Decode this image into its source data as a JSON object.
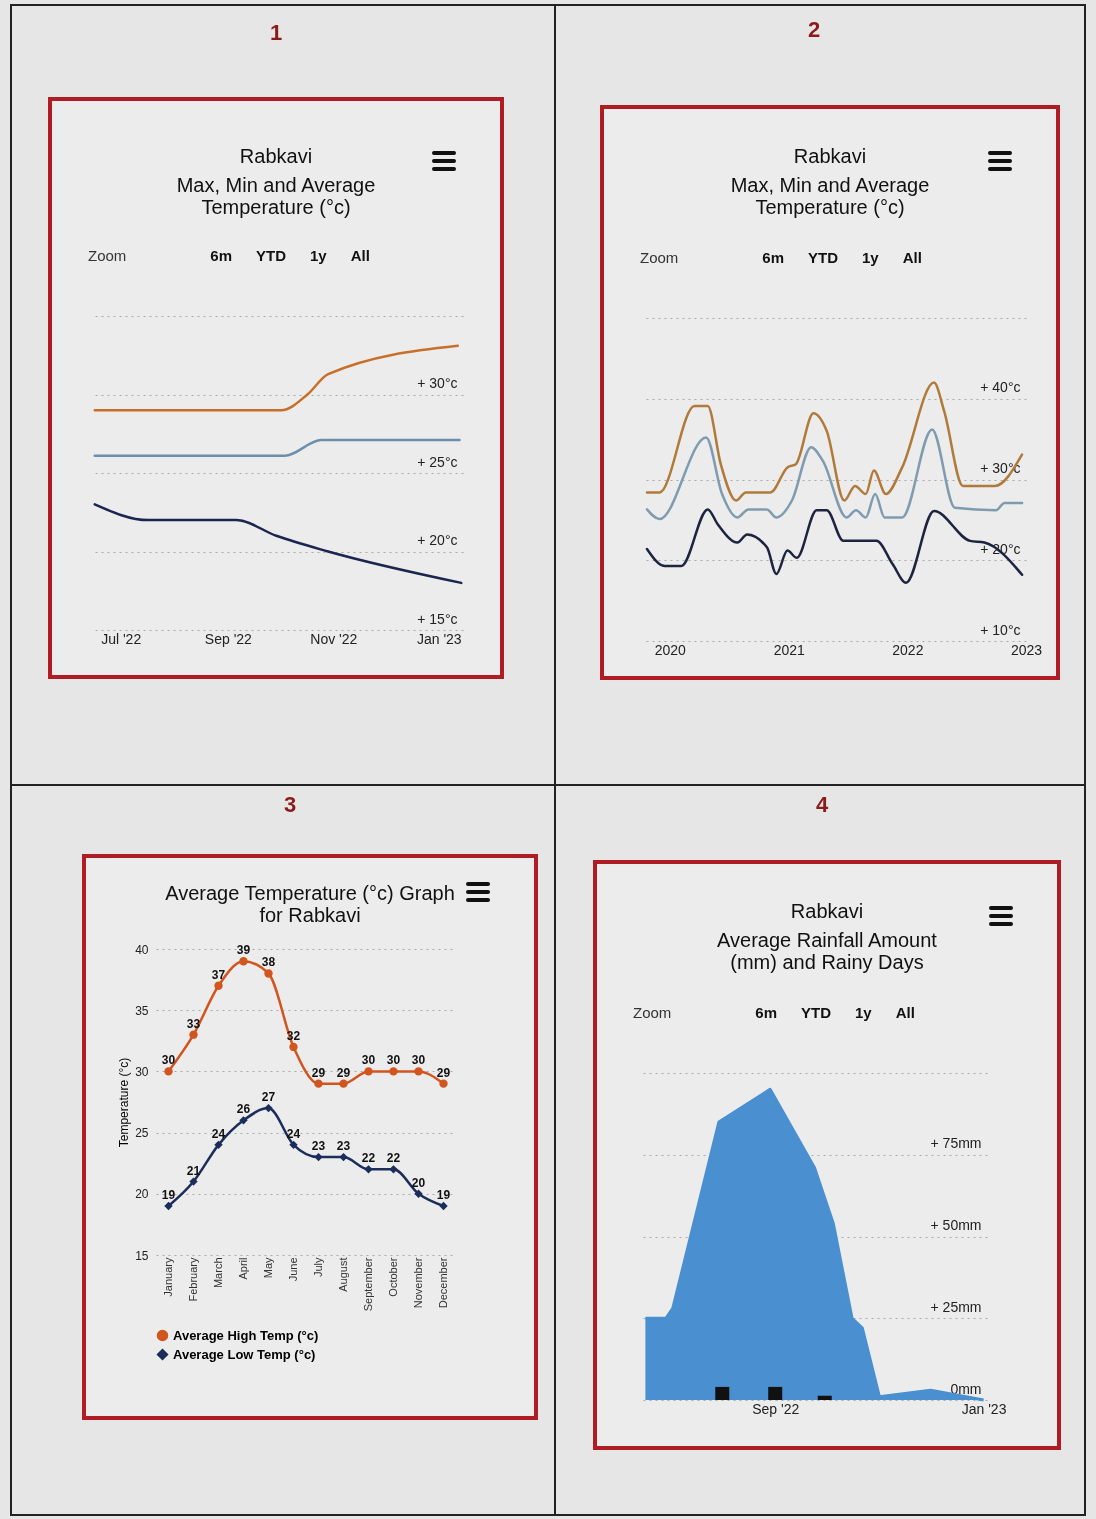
{
  "chart_data": [
    {
      "type": "line",
      "title": "Rabkavi",
      "subtitle": "Max, Min and Average Temperature (°c)",
      "annotations": [
        "1",
        "Zoom",
        "6m",
        "YTD",
        "1y",
        "All"
      ],
      "xlim": [
        "2022-06-15",
        "2023-01-15"
      ],
      "xticks": [
        {
          "value": "2022-07-01",
          "label": "Jul '22"
        },
        {
          "value": "2022-09-01",
          "label": "Sep '22"
        },
        {
          "value": "2022-11-01",
          "label": "Nov '22"
        },
        {
          "value": "2023-01-01",
          "label": "Jan '23"
        }
      ],
      "ylim": [
        15,
        35
      ],
      "yticks": [
        {
          "value": 15,
          "label": "+ 15°c"
        },
        {
          "value": 20,
          "label": "+ 20°c"
        },
        {
          "value": 25,
          "label": "+ 25°c"
        },
        {
          "value": 30,
          "label": "+ 30°c"
        },
        {
          "value": 35,
          "label": null
        }
      ],
      "grid": "y",
      "series": [
        {
          "color": "#c8702a",
          "x": [
            "2022-06-16",
            "2022-10-02",
            "2022-10-17",
            "2022-10-29",
            "2023-01-12"
          ],
          "values": [
            29.0,
            29.0,
            30.0,
            31.3,
            33.1
          ]
        },
        {
          "color": "#6d8fae",
          "x": [
            "2022-06-16",
            "2022-10-04",
            "2022-10-25",
            "2023-01-13"
          ],
          "values": [
            26.1,
            26.1,
            27.1,
            27.1
          ]
        },
        {
          "color": "#1a2550",
          "x": [
            "2022-06-16",
            "2022-07-17",
            "2022-09-06",
            "2022-09-29",
            "2022-10-29",
            "2023-01-14"
          ],
          "values": [
            23.0,
            22.0,
            22.0,
            21.0,
            20.0,
            18.0
          ]
        }
      ]
    },
    {
      "type": "line",
      "title": "Rabkavi",
      "subtitle": "Max, Min and Average Temperature (°c)",
      "annotations": [
        "2",
        "Zoom",
        "6m",
        "YTD",
        "1y",
        "All"
      ],
      "xlim": [
        "2019-10-20",
        "2023-01-01"
      ],
      "xticks": [
        {
          "value": "2020-01-01",
          "label": "2020"
        },
        {
          "value": "2021-01-01",
          "label": "2021"
        },
        {
          "value": "2022-01-01",
          "label": "2022"
        },
        {
          "value": "2023-01-01",
          "label": "2023"
        }
      ],
      "ylim": [
        10,
        50
      ],
      "yticks": [
        {
          "value": 10,
          "label": "+ 10°c"
        },
        {
          "value": 20,
          "label": "+ 20°c"
        },
        {
          "value": 30,
          "label": "+ 30°c"
        },
        {
          "value": 40,
          "label": "+ 40°c"
        },
        {
          "value": 50,
          "label": null
        }
      ],
      "grid": "y",
      "series": [
        {
          "color": "#b07a3a",
          "x": [
            "2019-10-23",
            "2019-12-01",
            "2020-03-17",
            "2020-04-27",
            "2020-06-06",
            "2020-07-23",
            "2020-08-22",
            "2020-11-06",
            "2020-12-28",
            "2021-01-23",
            "2021-03-18",
            "2021-04-28",
            "2021-06-21",
            "2021-07-24",
            "2021-08-26",
            "2021-09-20",
            "2021-10-27",
            "2021-12-16",
            "2022-03-24",
            "2022-04-24",
            "2022-06-21",
            "2022-09-27",
            "2022-12-20"
          ],
          "values": [
            28.4,
            28.4,
            39.1,
            39.1,
            31.9,
            27.4,
            28.4,
            28.4,
            31.5,
            31.9,
            38.2,
            36.0,
            27.4,
            29.2,
            28.2,
            31.1,
            28.2,
            31.5,
            42.0,
            38.5,
            29.2,
            29.2,
            33.1
          ]
        },
        {
          "color": "#7f9bb0",
          "x": [
            "2019-10-23",
            "2019-12-01",
            "2020-04-22",
            "2020-06-10",
            "2020-07-27",
            "2020-08-30",
            "2020-10-26",
            "2020-11-24",
            "2021-01-11",
            "2021-03-11",
            "2021-04-16",
            "2021-06-28",
            "2021-07-27",
            "2021-08-26",
            "2021-09-24",
            "2021-10-23",
            "2021-12-16",
            "2022-03-18",
            "2022-05-27",
            "2022-10-01",
            "2022-10-27",
            "2022-12-20"
          ],
          "values": [
            26.3,
            25.1,
            35.2,
            28.2,
            25.3,
            26.3,
            26.3,
            25.3,
            27.4,
            34.0,
            32.3,
            25.3,
            26.2,
            25.3,
            28.2,
            25.3,
            25.3,
            36.2,
            26.5,
            26.2,
            27.1,
            27.1
          ]
        },
        {
          "color": "#1c2440",
          "x": [
            "2019-10-23",
            "2019-12-16",
            "2020-02-06",
            "2020-04-27",
            "2020-05-27",
            "2020-07-27",
            "2020-08-26",
            "2020-10-26",
            "2020-11-24",
            "2020-12-28",
            "2021-01-26",
            "2021-03-28",
            "2021-04-28",
            "2021-06-18",
            "2021-09-28",
            "2021-11-17",
            "2021-12-28",
            "2022-03-24",
            "2022-07-13",
            "2022-08-26",
            "2022-12-20"
          ],
          "values": [
            21.4,
            19.3,
            19.3,
            26.3,
            24.5,
            22.2,
            23.2,
            21.6,
            18.3,
            21.2,
            20.3,
            26.2,
            26.2,
            22.4,
            22.4,
            19.5,
            17.2,
            26.1,
            22.4,
            22.2,
            18.2
          ]
        }
      ]
    },
    {
      "type": "line",
      "title": "Average Temperature (°c) Graph for Rabkavi",
      "annotations": [
        "3"
      ],
      "ylabel": "Temperature (°c)",
      "categories": [
        "January",
        "February",
        "March",
        "April",
        "May",
        "June",
        "July",
        "August",
        "September",
        "October",
        "November",
        "December"
      ],
      "ylim": [
        15,
        40
      ],
      "yticks": [
        15,
        20,
        25,
        30,
        35,
        40
      ],
      "grid": "y",
      "legend": "bottom",
      "marker": "circle",
      "data_labels": true,
      "series": [
        {
          "name": "Average High Temp (°c)",
          "color": "#d2541e",
          "values": [
            30,
            33,
            37,
            39,
            38,
            32,
            29,
            29,
            30,
            30,
            30,
            29
          ]
        },
        {
          "name": "Average Low Temp (°c)",
          "color": "#1b2d5a",
          "marker": "diamond",
          "values": [
            19,
            21,
            24,
            26,
            27,
            24,
            23,
            23,
            22,
            22,
            20,
            19
          ]
        }
      ]
    },
    {
      "type": "area",
      "title": "Rabkavi",
      "subtitle": "Average Rainfall Amount (mm) and Rainy Days",
      "annotations": [
        "4",
        "Zoom",
        "6m",
        "YTD",
        "1y",
        "All"
      ],
      "xlim": [
        "2022-06-15",
        "2023-01-03"
      ],
      "xticks": [
        {
          "value": "2022-09-01",
          "label": "Sep '22"
        },
        {
          "value": "2023-01-01",
          "label": "Jan '23"
        }
      ],
      "ylim": [
        0,
        100
      ],
      "yticks": [
        {
          "value": 0,
          "label": "0mm"
        },
        {
          "value": 25,
          "label": "+ 25mm"
        },
        {
          "value": 50,
          "label": "+ 50mm"
        },
        {
          "value": 75,
          "label": "+ 75mm"
        },
        {
          "value": 100,
          "label": null
        }
      ],
      "grid": "y",
      "series": [
        {
          "color": "#4a8fd0",
          "x": [
            "2022-06-17",
            "2022-06-29",
            "2022-07-03",
            "2022-07-30",
            "2022-08-29",
            "2022-09-24",
            "2022-10-05",
            "2022-10-16",
            "2022-10-22",
            "2022-11-01",
            "2022-12-01",
            "2023-01-01"
          ],
          "values": [
            25,
            25,
            28,
            85,
            95,
            71,
            54,
            25,
            22,
            1,
            3,
            0
          ]
        },
        {
          "type": "bar",
          "color": "#111111",
          "x": [
            "2022-08-01",
            "2022-09-01",
            "2022-09-30"
          ],
          "values": [
            4,
            4,
            1.3
          ]
        }
      ]
    }
  ]
}
